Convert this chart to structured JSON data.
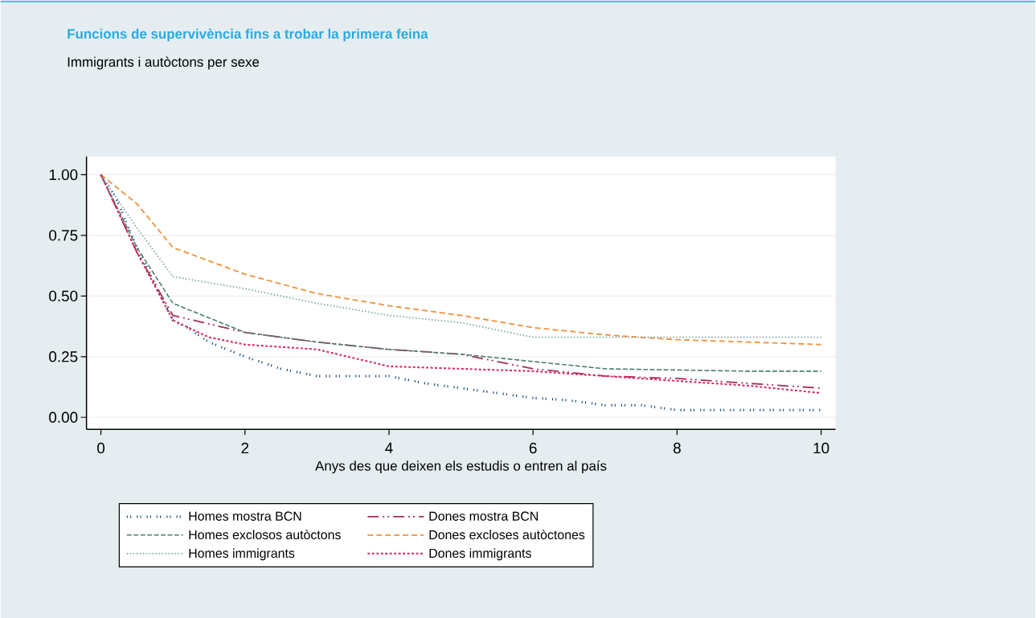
{
  "chart_data": {
    "type": "line",
    "title": "Funcions de supervivència fins a trobar la primera feina",
    "subtitle": "Immigrants i autòctons per sexe",
    "xlabel": "Anys des que deixen els estudis o entren al país",
    "xlim": [
      -0.2,
      10.2
    ],
    "ylim": [
      -0.05,
      1.075
    ],
    "xticks": [
      0,
      2,
      4,
      6,
      8,
      10
    ],
    "yticks": [
      {
        "value": 0,
        "label": "0.00"
      },
      {
        "value": 0.25,
        "label": "0.25"
      },
      {
        "value": 0.5,
        "label": "0.50"
      },
      {
        "value": 0.75,
        "label": "0.75"
      },
      {
        "value": 1,
        "label": "1.00"
      }
    ],
    "grid": "y",
    "legend": "bottom",
    "series": [
      {
        "name": "Homes mostra BCN",
        "color": "#1f4e79",
        "line_style": "dotted",
        "x": [
          0,
          0.2,
          0.5,
          0.8,
          1,
          1.2,
          1.5,
          2,
          2.5,
          3,
          3.5,
          4,
          4.5,
          5,
          5.5,
          6,
          6.5,
          7,
          7.5,
          8,
          9,
          10
        ],
        "values": [
          1,
          0.91,
          0.7,
          0.52,
          0.4,
          0.37,
          0.31,
          0.25,
          0.2,
          0.17,
          0.17,
          0.17,
          0.14,
          0.12,
          0.1,
          0.08,
          0.07,
          0.05,
          0.05,
          0.03,
          0.03,
          0.03
        ]
      },
      {
        "name": "Dones mostra BCN",
        "color": "#a3324f",
        "line_style": "dashed",
        "x": [
          0,
          0.5,
          1,
          2,
          3,
          4,
          5,
          6,
          7,
          8,
          9,
          10
        ],
        "values": [
          1,
          0.68,
          0.42,
          0.35,
          0.31,
          0.28,
          0.26,
          0.2,
          0.17,
          0.16,
          0.14,
          0.12
        ]
      },
      {
        "name": "Homes exclosos autòctons",
        "color": "#4f7f6a",
        "line_style": "dashed",
        "x": [
          0,
          0.5,
          1,
          1.5,
          2,
          3,
          4,
          5,
          6,
          7,
          8,
          9,
          10
        ],
        "values": [
          1,
          0.7,
          0.47,
          0.41,
          0.35,
          0.31,
          0.28,
          0.26,
          0.23,
          0.2,
          0.195,
          0.19,
          0.19
        ]
      },
      {
        "name": "Dones excloses autòctones",
        "color": "#f0903a",
        "line_style": "dashed",
        "x": [
          0,
          0.5,
          1,
          2,
          3,
          4,
          5,
          6,
          7,
          8,
          9,
          10
        ],
        "values": [
          1,
          0.88,
          0.7,
          0.59,
          0.51,
          0.46,
          0.42,
          0.37,
          0.34,
          0.32,
          0.31,
          0.3
        ]
      },
      {
        "name": "Homes immigrants",
        "color": "#7fa0a8",
        "line_style": "dotted",
        "x": [
          0,
          0.5,
          1,
          2,
          3,
          4,
          5,
          6,
          7,
          10
        ],
        "values": [
          1,
          0.78,
          0.58,
          0.53,
          0.47,
          0.42,
          0.39,
          0.33,
          0.33,
          0.33
        ]
      },
      {
        "name": "Dones immigrants",
        "color": "#d9245f",
        "line_style": "dotted",
        "x": [
          0,
          0.5,
          1,
          1.5,
          2,
          3,
          4,
          5,
          6,
          7,
          8,
          9,
          10
        ],
        "values": [
          1,
          0.68,
          0.4,
          0.33,
          0.3,
          0.28,
          0.21,
          0.2,
          0.19,
          0.17,
          0.15,
          0.13,
          0.1
        ]
      }
    ]
  }
}
